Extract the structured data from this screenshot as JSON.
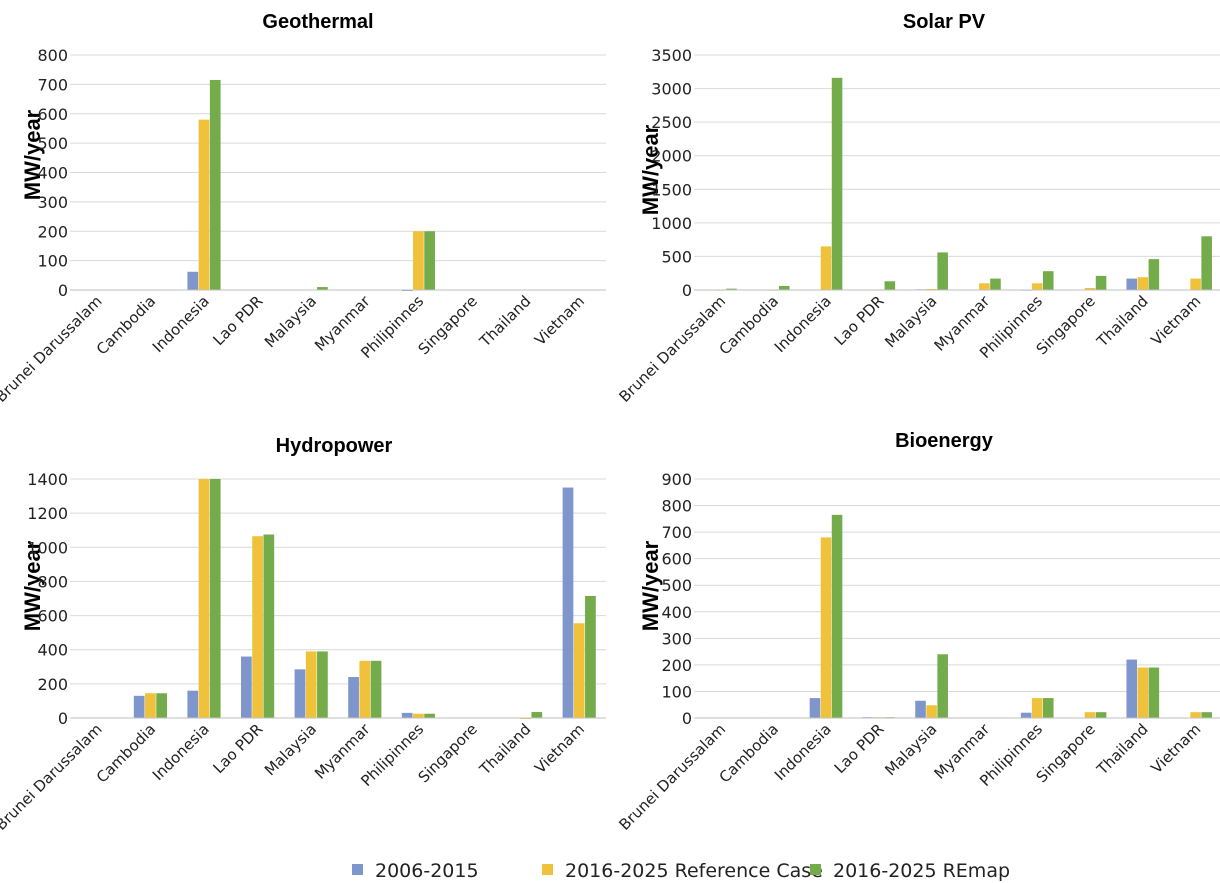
{
  "legend": {
    "placement": "bottom-center",
    "items": [
      {
        "label": "2006-2015",
        "color": "#7f96cc"
      },
      {
        "label": "2016-2025 Reference Case",
        "color": "#f0c23b"
      },
      {
        "label": "2016-2025 REmap",
        "color": "#74ac4c"
      }
    ]
  },
  "chart_data": [
    {
      "type": "bar",
      "title": "Geothermal",
      "ylabel": "MW/year",
      "ylim": [
        0,
        800
      ],
      "yticks": [
        0,
        100,
        200,
        300,
        400,
        500,
        600,
        700,
        800
      ],
      "grid": true,
      "categories": [
        "Brunei Darussalam",
        "Cambodia",
        "Indonesia",
        "Lao PDR",
        "Malaysia",
        "Myanmar",
        "Philipinnes",
        "Singapore",
        "Thailand",
        "Vietnam"
      ],
      "series": [
        {
          "name": "2006-2015",
          "values": [
            0,
            0,
            62,
            0,
            0,
            0,
            -2,
            0,
            0,
            0
          ]
        },
        {
          "name": "2016-2025 Reference Case",
          "values": [
            0,
            0,
            580,
            0,
            0,
            0,
            200,
            0,
            0,
            0
          ]
        },
        {
          "name": "2016-2025 REmap",
          "values": [
            0,
            0,
            715,
            0,
            10,
            0,
            200,
            0,
            0,
            0
          ]
        }
      ]
    },
    {
      "type": "bar",
      "title": "Solar PV",
      "ylabel": "MW/year",
      "ylim": [
        0,
        3500
      ],
      "yticks": [
        0,
        500,
        1000,
        1500,
        2000,
        2500,
        3000,
        3500
      ],
      "grid": true,
      "categories": [
        "Brunei Darussalam",
        "Cambodia",
        "Indonesia",
        "Lao PDR",
        "Malaysia",
        "Myanmar",
        "Philipinnes",
        "Singapore",
        "Thailand",
        "Vietnam"
      ],
      "series": [
        {
          "name": "2006-2015",
          "values": [
            0,
            0,
            0,
            0,
            10,
            0,
            5,
            0,
            170,
            0
          ]
        },
        {
          "name": "2016-2025 Reference Case",
          "values": [
            5,
            5,
            650,
            5,
            15,
            100,
            100,
            30,
            190,
            170
          ]
        },
        {
          "name": "2016-2025 REmap",
          "values": [
            20,
            60,
            3160,
            130,
            560,
            170,
            280,
            210,
            460,
            800
          ]
        }
      ]
    },
    {
      "type": "bar",
      "title": "Hydropower",
      "ylabel": "MW/year",
      "ylim": [
        0,
        1400
      ],
      "yticks": [
        0,
        200,
        400,
        600,
        800,
        1000,
        1200,
        1400
      ],
      "grid": true,
      "categories": [
        "Brunei Darussalam",
        "Cambodia",
        "Indonesia",
        "Lao PDR",
        "Malaysia",
        "Myanmar",
        "Philipinnes",
        "Singapore",
        "Thailand",
        "Vietnam"
      ],
      "series": [
        {
          "name": "2006-2015",
          "values": [
            0,
            130,
            160,
            360,
            285,
            240,
            30,
            0,
            0,
            1350
          ]
        },
        {
          "name": "2016-2025 Reference Case",
          "values": [
            0,
            145,
            1400,
            1065,
            390,
            335,
            25,
            0,
            -5,
            555
          ]
        },
        {
          "name": "2016-2025 REmap",
          "values": [
            0,
            145,
            1400,
            1075,
            390,
            335,
            25,
            0,
            35,
            715
          ]
        }
      ]
    },
    {
      "type": "bar",
      "title": "Bioenergy",
      "ylabel": "MW/year",
      "ylim": [
        0,
        900
      ],
      "yticks": [
        0,
        100,
        200,
        300,
        400,
        500,
        600,
        700,
        800,
        900
      ],
      "grid": true,
      "categories": [
        "Brunei Darussalam",
        "Cambodia",
        "Indonesia",
        "Lao PDR",
        "Malaysia",
        "Myanmar",
        "Philipinnes",
        "Singapore",
        "Thailand",
        "Vietnam"
      ],
      "series": [
        {
          "name": "2006-2015",
          "values": [
            0,
            2,
            75,
            3,
            65,
            0,
            20,
            0,
            220,
            0
          ]
        },
        {
          "name": "2016-2025 Reference Case",
          "values": [
            0,
            0,
            680,
            3,
            48,
            0,
            75,
            22,
            190,
            22
          ]
        },
        {
          "name": "2016-2025 REmap",
          "values": [
            0,
            0,
            765,
            3,
            240,
            0,
            75,
            22,
            190,
            22
          ]
        }
      ]
    }
  ]
}
